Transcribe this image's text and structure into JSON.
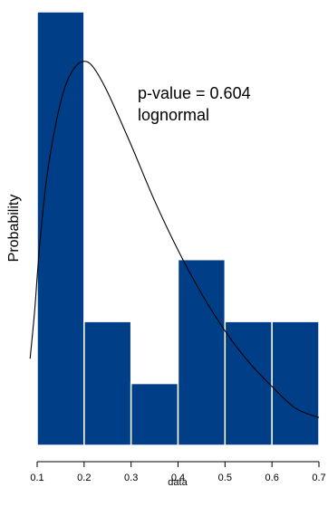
{
  "chart_data": {
    "type": "histogram",
    "title": "",
    "xlabel": "data",
    "ylabel": "Probability",
    "xlim": [
      0.1,
      0.7
    ],
    "x_ticks": [
      "0.1",
      "0.2",
      "0.3",
      "0.4",
      "0.5",
      "0.6",
      "0.7"
    ],
    "bin_edges": [
      0.1,
      0.2,
      0.3,
      0.4,
      0.5,
      0.6,
      0.7
    ],
    "bins": [
      {
        "x0": 0.1,
        "x1": 0.2,
        "value": 7
      },
      {
        "x0": 0.2,
        "x1": 0.3,
        "value": 2
      },
      {
        "x0": 0.3,
        "x1": 0.4,
        "value": 1
      },
      {
        "x0": 0.4,
        "x1": 0.5,
        "value": 3
      },
      {
        "x0": 0.5,
        "x1": 0.6,
        "value": 2
      },
      {
        "x0": 0.6,
        "x1": 0.7,
        "value": 2
      }
    ],
    "ylim": [
      0,
      7
    ],
    "bar_color": "#003f87",
    "bar_edge_color": "#ffffff",
    "curve": {
      "name": "lognormal",
      "points": [
        [
          0.085,
          1.4
        ],
        [
          0.095,
          2.2
        ],
        [
          0.105,
          3.2
        ],
        [
          0.12,
          4.3
        ],
        [
          0.14,
          5.2
        ],
        [
          0.16,
          5.8
        ],
        [
          0.18,
          6.1
        ],
        [
          0.2,
          6.2
        ],
        [
          0.22,
          6.1
        ],
        [
          0.25,
          5.7
        ],
        [
          0.3,
          4.85
        ],
        [
          0.35,
          3.95
        ],
        [
          0.4,
          3.15
        ],
        [
          0.45,
          2.45
        ],
        [
          0.5,
          1.85
        ],
        [
          0.55,
          1.35
        ],
        [
          0.6,
          0.95
        ],
        [
          0.65,
          0.6
        ],
        [
          0.7,
          0.45
        ]
      ],
      "color": "#000000"
    },
    "annotations": [
      "p-value = 0.604",
      "lognormal"
    ],
    "grid": false,
    "legend": "none"
  }
}
